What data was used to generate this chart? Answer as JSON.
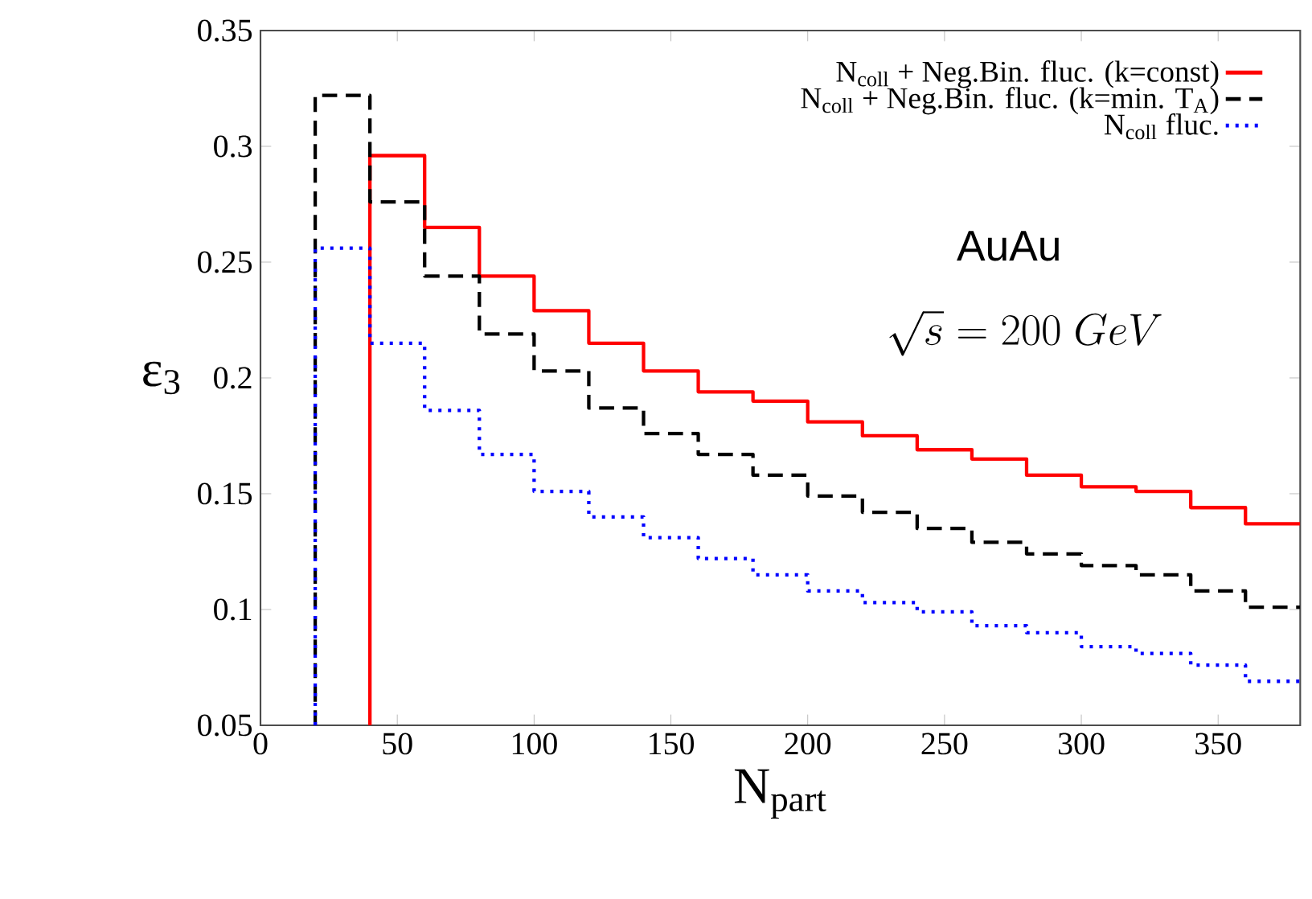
{
  "chart_data": {
    "type": "step",
    "xlabel": "N$_{part}$",
    "ylabel": "ε$_{3}$",
    "xlim": [
      0,
      380
    ],
    "ylim": [
      0.05,
      0.35
    ],
    "xticks": [
      0,
      50,
      100,
      150,
      200,
      250,
      300,
      350
    ],
    "yticks": [
      0.05,
      0.1,
      0.15,
      0.2,
      0.25,
      0.3,
      0.35
    ],
    "legend": "top right",
    "annotations": [
      "AuAu",
      "\\sqrt{s} = 200\\ GeV"
    ],
    "series": [
      {
        "name": "N$_{coll}$ + Neg.Bin. fluc. (k=const)",
        "color": "#ff0000",
        "line_style": "solid",
        "x": [
          40,
          40,
          60,
          80,
          100,
          120,
          140,
          160,
          180,
          200,
          220,
          240,
          260,
          280,
          300,
          320,
          340,
          360,
          380
        ],
        "values": [
          0.05,
          0.296,
          0.265,
          0.244,
          0.229,
          0.215,
          0.203,
          0.194,
          0.19,
          0.181,
          0.175,
          0.169,
          0.165,
          0.158,
          0.153,
          0.151,
          0.144,
          0.137,
          0.137
        ]
      },
      {
        "name": "N$_{coll}$ + Neg.Bin. fluc. (k=min. T$_{A}$)",
        "color": "#000000",
        "line_style": "dashed",
        "x": [
          20,
          20,
          40,
          60,
          80,
          100,
          120,
          140,
          160,
          180,
          200,
          220,
          240,
          260,
          280,
          300,
          320,
          340,
          360,
          380
        ],
        "values": [
          0.05,
          0.322,
          0.276,
          0.244,
          0.219,
          0.203,
          0.187,
          0.176,
          0.167,
          0.158,
          0.149,
          0.142,
          0.135,
          0.129,
          0.124,
          0.119,
          0.115,
          0.108,
          0.101,
          0.101
        ]
      },
      {
        "name": "N$_{coll}$ fluc.",
        "color": "#0000ff",
        "line_style": "dotted",
        "x": [
          20,
          20,
          40,
          60,
          80,
          100,
          120,
          140,
          160,
          180,
          200,
          220,
          240,
          260,
          280,
          300,
          320,
          340,
          360,
          380
        ],
        "values": [
          0.05,
          0.256,
          0.215,
          0.186,
          0.167,
          0.151,
          0.14,
          0.131,
          0.122,
          0.115,
          0.108,
          0.103,
          0.099,
          0.093,
          0.09,
          0.084,
          0.081,
          0.076,
          0.069,
          0.069
        ]
      }
    ]
  }
}
